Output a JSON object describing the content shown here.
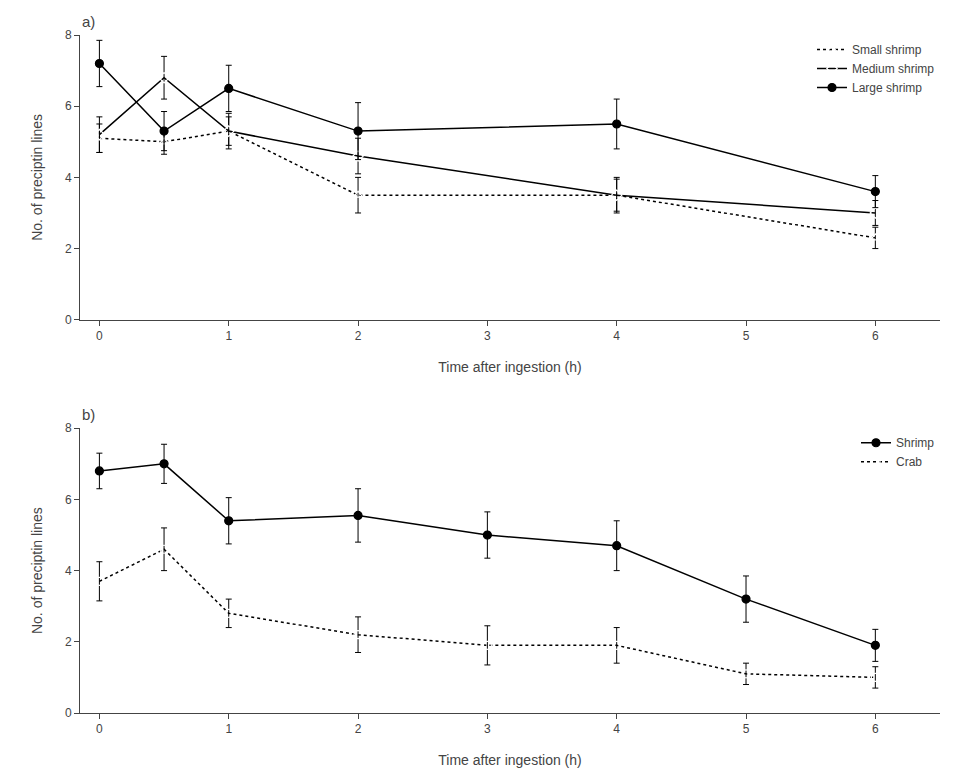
{
  "chart_data": [
    {
      "type": "line",
      "title": "a)",
      "x_label": "Time after ingestion (h)",
      "y_label": "No. of preciptin lines",
      "x": [
        0,
        0.5,
        1,
        2,
        4,
        6
      ],
      "series": [
        {
          "name": "Small shrimp",
          "color": "#000000",
          "marker": "triangle-up-open",
          "line_style": "dotted",
          "values": [
            5.1,
            5.0,
            5.3,
            3.5,
            3.5,
            2.3
          ],
          "yerr": [
            0.4,
            0.35,
            0.4,
            0.5,
            0.5,
            0.3
          ]
        },
        {
          "name": "Medium shrimp",
          "color": "#000000",
          "marker": "diamond-open",
          "line_style": "solid",
          "values": [
            5.2,
            6.8,
            5.3,
            4.6,
            3.5,
            3.0
          ],
          "yerr": [
            0.5,
            0.6,
            0.5,
            0.5,
            0.45,
            0.35
          ]
        },
        {
          "name": "Large shrimp",
          "color": "#000000",
          "marker": "circle",
          "line_style": "solid",
          "values": [
            7.2,
            5.3,
            6.5,
            5.3,
            5.5,
            3.6
          ],
          "yerr": [
            0.65,
            0.55,
            0.65,
            0.8,
            0.7,
            0.45
          ]
        }
      ],
      "xlim": [
        -0.15,
        6.5
      ],
      "xticks": [
        0,
        1,
        2,
        3,
        4,
        5,
        6
      ],
      "ylim": [
        0,
        8
      ],
      "yticks": [
        0,
        2,
        4,
        6,
        8
      ],
      "grid": false,
      "legend": "upper right"
    },
    {
      "type": "line",
      "title": "b)",
      "x_label": "Time after ingestion (h)",
      "y_label": "No. of preciptin lines",
      "x": [
        0,
        0.5,
        1,
        2,
        3,
        4,
        5,
        6
      ],
      "series": [
        {
          "name": "Shrimp",
          "color": "#000000",
          "marker": "circle",
          "line_style": "solid",
          "values": [
            6.8,
            7.0,
            5.4,
            5.55,
            5.0,
            4.7,
            3.2,
            1.9
          ],
          "yerr": [
            0.5,
            0.55,
            0.65,
            0.75,
            0.65,
            0.7,
            0.65,
            0.45
          ]
        },
        {
          "name": "Crab",
          "color": "#000000",
          "marker": "circle-open",
          "line_style": "dotted",
          "values": [
            3.7,
            4.6,
            2.8,
            2.2,
            1.9,
            1.9,
            1.1,
            1.0
          ],
          "yerr": [
            0.55,
            0.6,
            0.4,
            0.5,
            0.55,
            0.5,
            0.3,
            0.3
          ]
        }
      ],
      "xlim": [
        -0.15,
        6.5
      ],
      "xticks": [
        0,
        1,
        2,
        3,
        4,
        5,
        6
      ],
      "ylim": [
        0,
        8
      ],
      "yticks": [
        0,
        2,
        4,
        6,
        8
      ],
      "grid": false,
      "legend": "upper right"
    }
  ]
}
